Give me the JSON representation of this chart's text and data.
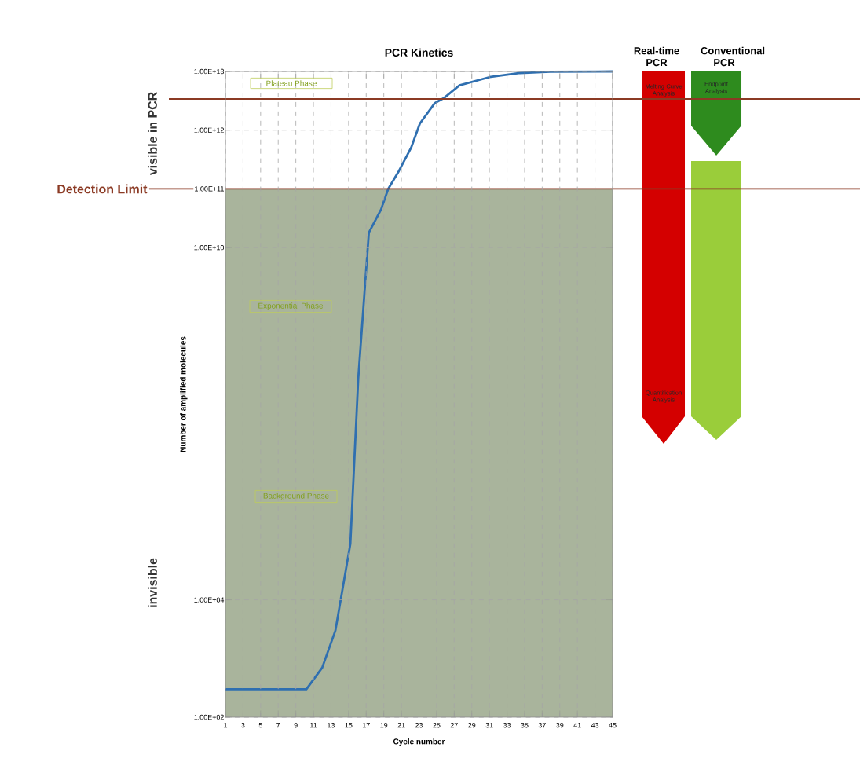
{
  "chart_data": {
    "type": "line",
    "title": "PCR Kinetics",
    "xlabel": "Cycle number",
    "ylabel": "Number of amplified molecules",
    "x": [
      1,
      10.2,
      12,
      13.5,
      15.2,
      16.1,
      17.3,
      18.7,
      19.5,
      20.7,
      22.1,
      23.1,
      24.8,
      25.8,
      27.6,
      31,
      34.5,
      37.9,
      45
    ],
    "series": [
      {
        "color": "#2f6fb0",
        "values": [
          300,
          300,
          700,
          3000,
          90000,
          60000000,
          18000000000,
          45000000000,
          100000000000,
          200000000000,
          500000000000,
          1300000000000,
          2900000000000,
          3500000000000,
          5800000000000,
          8000000000000,
          9400000000000,
          9900000000000,
          10000000000000
        ]
      }
    ],
    "log": "y",
    "xlim": [
      1,
      45
    ],
    "ylim": [
      100,
      10000000000000
    ],
    "xticks": [
      1,
      3,
      5,
      7,
      9,
      11,
      13,
      15,
      17,
      19,
      21,
      23,
      25,
      27,
      29,
      31,
      33,
      35,
      37,
      39,
      41,
      43,
      45
    ],
    "yticks": [
      {
        "value": 100,
        "label": "1.00E+02"
      },
      {
        "value": 10000,
        "label": "1.00E+04"
      },
      {
        "value": 10000000000,
        "label": "1.00E+10"
      },
      {
        "value": 100000000000,
        "label": "1.00E+11"
      },
      {
        "value": 1000000000000,
        "label": "1.00E+12"
      },
      {
        "value": 10000000000000,
        "label": "1.00E+13"
      }
    ],
    "grid": true,
    "line_style": "solid",
    "ref_lines": [
      {
        "axis": "y",
        "value": 100000000000,
        "label": "Detection Limit",
        "color": "#8b3a24"
      },
      {
        "axis": "y",
        "value": 3400000000000,
        "color": "#8b3a24"
      }
    ],
    "bands": [
      {
        "axis": "y",
        "from": 100,
        "to": 100000000000,
        "color": "#a9b49c"
      }
    ],
    "annotations": [
      "Plateau Phase",
      "Exponential Phase",
      "Background Phase",
      "visible in PCR",
      "invisible",
      "Real-time PCR",
      "Conventional PCR",
      "Melting Curve Analysis",
      "Quantification Analysis",
      "Endpoint Analysis"
    ]
  }
}
